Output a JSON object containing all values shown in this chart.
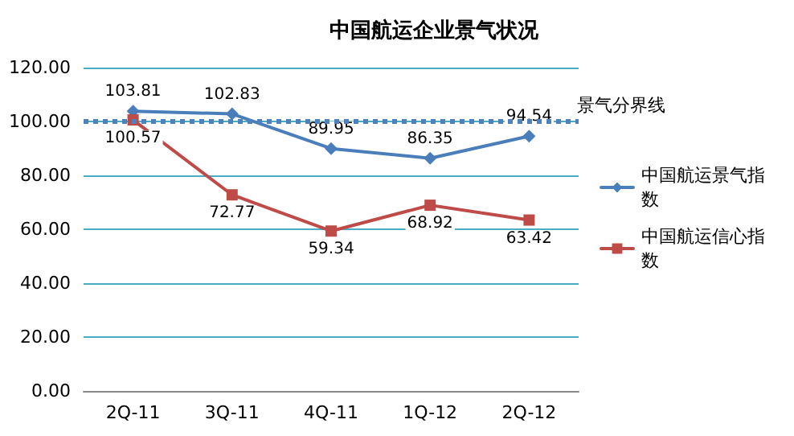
{
  "chart_data": {
    "type": "line",
    "title": "中国航运企业景气状况",
    "categories": [
      "2Q-11",
      "3Q-11",
      "4Q-11",
      "1Q-12",
      "2Q-12"
    ],
    "series": [
      {
        "name": "中国航运景气指数",
        "color": "#4a7ebb",
        "marker": "diamond",
        "values": [
          103.81,
          102.83,
          89.95,
          86.35,
          94.54
        ]
      },
      {
        "name": "中国航运信心指数",
        "color": "#be4b48",
        "marker": "square",
        "values": [
          100.57,
          72.77,
          59.34,
          68.92,
          63.42
        ]
      }
    ],
    "ylim": [
      0,
      120
    ],
    "yticks": [
      {
        "value": 0,
        "label": "0.00"
      },
      {
        "value": 20,
        "label": "20.00"
      },
      {
        "value": 40,
        "label": "40.00"
      },
      {
        "value": 60,
        "label": "60.00"
      },
      {
        "value": 80,
        "label": "80.00"
      },
      {
        "value": 100,
        "label": "100.00"
      },
      {
        "value": 120,
        "label": "120.00"
      }
    ],
    "ref_lines": [
      {
        "axis": "y",
        "value": 100,
        "label": "景气分界线",
        "color": "#4f81bd",
        "line_style": "dotted"
      }
    ],
    "grid": "y",
    "legend": "right",
    "data_labels": true
  }
}
